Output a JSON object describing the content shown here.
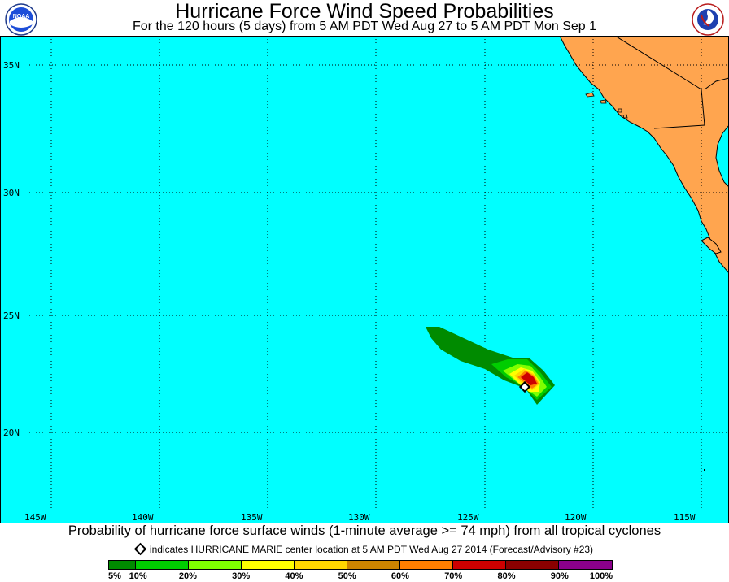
{
  "header": {
    "title": "Hurricane Force Wind Speed Probabilities",
    "subtitle": "For the 120 hours (5 days) from 5 AM PDT Wed Aug 27 to 5 AM PDT Mon Sep 1",
    "left_logo_icon": "noaa-logo",
    "left_logo_text": "NOAA",
    "right_logo_icon": "national-weather-service-logo"
  },
  "map": {
    "colors": {
      "ocean": "#00ffff",
      "land": "#ffa54f",
      "border": "#000000"
    },
    "lat_labels": [
      "35N",
      "30N",
      "25N",
      "20N"
    ],
    "lon_labels": [
      "145W",
      "140W",
      "135W",
      "130W",
      "125W",
      "120W",
      "115W"
    ],
    "storm_marker_icon": "diamond-icon"
  },
  "caption": {
    "main": "Probability of hurricane force surface winds (1-minute average >= 74 mph) from all tropical cyclones",
    "marker_note": "indicates HURRICANE MARIE center location at 5 AM PDT Wed Aug 27 2014 (Forecast/Advisory #23)"
  },
  "legend": {
    "colors": [
      "#008b00",
      "#00cd00",
      "#7fff00",
      "#ffff00",
      "#ffd700",
      "#cd8500",
      "#ff7f00",
      "#cd0000",
      "#8b0000",
      "#8b008b"
    ],
    "ticks": [
      "5%",
      "10%",
      "20%",
      "30%",
      "40%",
      "50%",
      "60%",
      "70%",
      "80%",
      "90%",
      "100%"
    ]
  }
}
